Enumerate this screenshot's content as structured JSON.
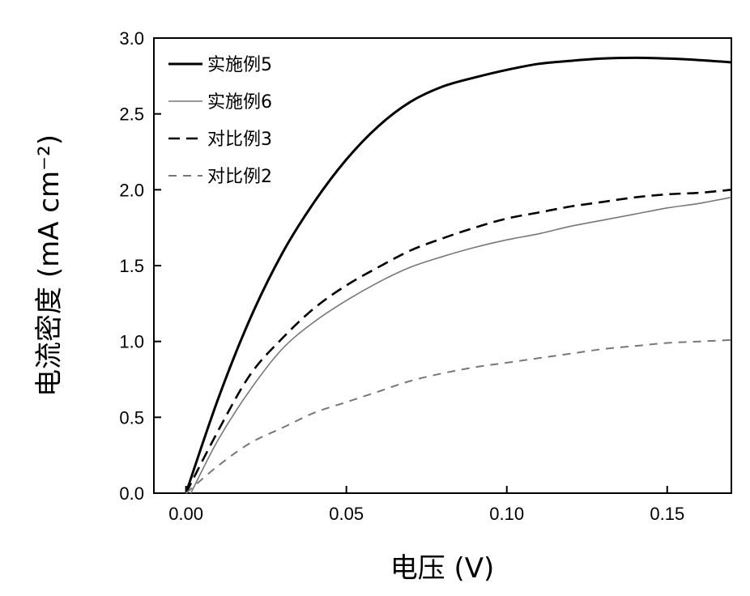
{
  "chart_data": {
    "type": "line",
    "xlabel": "电压 (V)",
    "ylabel": "电流密度 (mA cm⁻²)",
    "xlim": [
      -0.01,
      0.17
    ],
    "ylim": [
      0.0,
      3.0
    ],
    "xticks": [
      "0.00",
      "0.05",
      "0.10",
      "0.15"
    ],
    "yticks": [
      "0.0",
      "0.5",
      "1.0",
      "1.5",
      "2.0",
      "2.5",
      "3.0"
    ],
    "legend_position": "top-left",
    "series": [
      {
        "name": "实施例5",
        "color": "#000000",
        "style": "solid-thick",
        "points": [
          [
            0.0,
            0.0
          ],
          [
            0.01,
            0.62
          ],
          [
            0.02,
            1.15
          ],
          [
            0.03,
            1.58
          ],
          [
            0.04,
            1.92
          ],
          [
            0.05,
            2.2
          ],
          [
            0.06,
            2.42
          ],
          [
            0.07,
            2.58
          ],
          [
            0.08,
            2.68
          ],
          [
            0.09,
            2.74
          ],
          [
            0.1,
            2.79
          ],
          [
            0.11,
            2.83
          ],
          [
            0.12,
            2.85
          ],
          [
            0.13,
            2.865
          ],
          [
            0.14,
            2.87
          ],
          [
            0.15,
            2.865
          ],
          [
            0.16,
            2.855
          ],
          [
            0.17,
            2.84
          ]
        ]
      },
      {
        "name": "实施例6",
        "color": "#777777",
        "style": "solid-thin",
        "points": [
          [
            0.0015,
            0.0
          ],
          [
            0.01,
            0.35
          ],
          [
            0.02,
            0.68
          ],
          [
            0.03,
            0.95
          ],
          [
            0.04,
            1.13
          ],
          [
            0.05,
            1.27
          ],
          [
            0.06,
            1.39
          ],
          [
            0.07,
            1.49
          ],
          [
            0.08,
            1.56
          ],
          [
            0.09,
            1.62
          ],
          [
            0.1,
            1.67
          ],
          [
            0.11,
            1.71
          ],
          [
            0.12,
            1.76
          ],
          [
            0.13,
            1.8
          ],
          [
            0.14,
            1.84
          ],
          [
            0.15,
            1.88
          ],
          [
            0.16,
            1.91
          ],
          [
            0.17,
            1.95
          ]
        ]
      },
      {
        "name": "对比例3",
        "color": "#000000",
        "style": "dashed",
        "points": [
          [
            0.0,
            0.0
          ],
          [
            0.01,
            0.41
          ],
          [
            0.02,
            0.78
          ],
          [
            0.03,
            1.02
          ],
          [
            0.04,
            1.22
          ],
          [
            0.05,
            1.37
          ],
          [
            0.06,
            1.49
          ],
          [
            0.07,
            1.6
          ],
          [
            0.08,
            1.68
          ],
          [
            0.09,
            1.75
          ],
          [
            0.1,
            1.81
          ],
          [
            0.11,
            1.85
          ],
          [
            0.12,
            1.89
          ],
          [
            0.13,
            1.92
          ],
          [
            0.14,
            1.95
          ],
          [
            0.15,
            1.97
          ],
          [
            0.16,
            1.98
          ],
          [
            0.17,
            2.0
          ]
        ]
      },
      {
        "name": "对比例2",
        "color": "#777777",
        "style": "dashed-thin",
        "points": [
          [
            0.0,
            0.0
          ],
          [
            0.01,
            0.18
          ],
          [
            0.02,
            0.33
          ],
          [
            0.03,
            0.43
          ],
          [
            0.04,
            0.53
          ],
          [
            0.05,
            0.6
          ],
          [
            0.06,
            0.67
          ],
          [
            0.07,
            0.74
          ],
          [
            0.08,
            0.79
          ],
          [
            0.09,
            0.83
          ],
          [
            0.1,
            0.86
          ],
          [
            0.11,
            0.89
          ],
          [
            0.12,
            0.92
          ],
          [
            0.13,
            0.95
          ],
          [
            0.14,
            0.97
          ],
          [
            0.15,
            0.99
          ],
          [
            0.16,
            1.0
          ],
          [
            0.17,
            1.01
          ]
        ]
      }
    ]
  }
}
